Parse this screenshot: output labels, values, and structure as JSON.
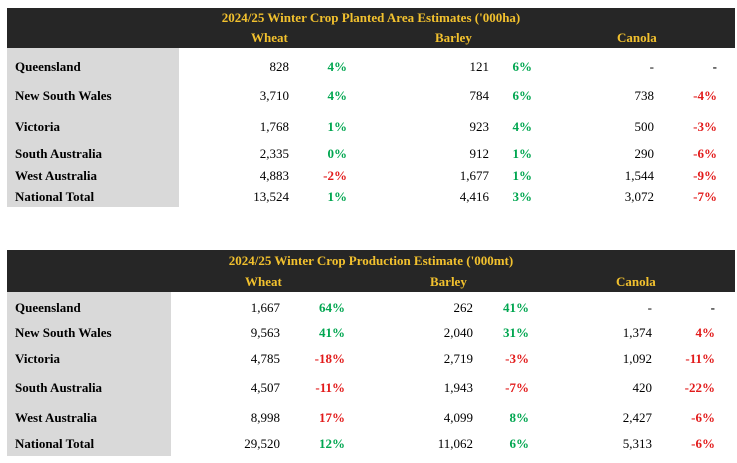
{
  "table1": {
    "title": "2024/25 Winter Crop Planted Area Estimates ('000ha)",
    "headers": [
      "Wheat",
      "Barley",
      "Canola"
    ],
    "rows": [
      {
        "region": "Queensland",
        "wheat": "828",
        "wheat_pct": "4%",
        "barley": "121",
        "barley_pct": "6%",
        "canola": "-",
        "canola_pct": "-"
      },
      {
        "region": "New South Wales",
        "wheat": "3,710",
        "wheat_pct": "4%",
        "barley": "784",
        "barley_pct": "6%",
        "canola": "738",
        "canola_pct": "-4%"
      },
      {
        "region": "Victoria",
        "wheat": "1,768",
        "wheat_pct": "1%",
        "barley": "923",
        "barley_pct": "4%",
        "canola": "500",
        "canola_pct": "-3%"
      },
      {
        "region": "South Australia",
        "wheat": "2,335",
        "wheat_pct": "0%",
        "barley": "912",
        "barley_pct": "1%",
        "canola": "290",
        "canola_pct": "-6%"
      },
      {
        "region": "West Australia",
        "wheat": "4,883",
        "wheat_pct": "-2%",
        "barley": "1,677",
        "barley_pct": "1%",
        "canola": "1,544",
        "canola_pct": "-9%"
      },
      {
        "region": "National Total",
        "wheat": "13,524",
        "wheat_pct": "1%",
        "barley": "4,416",
        "barley_pct": "3%",
        "canola": "3,072",
        "canola_pct": "-7%"
      }
    ]
  },
  "table2": {
    "title": "2024/25 Winter Crop Production Estimate ('000mt)",
    "headers": [
      "Wheat",
      "Barley",
      "Canola"
    ],
    "rows": [
      {
        "region": "Queensland",
        "wheat": "1,667",
        "wheat_pct": "64%",
        "barley": "262",
        "barley_pct": "41%",
        "canola": "-",
        "canola_pct": "-"
      },
      {
        "region": "New South Wales",
        "wheat": "9,563",
        "wheat_pct": "41%",
        "barley": "2,040",
        "barley_pct": "31%",
        "canola": "1,374",
        "canola_pct": "4%"
      },
      {
        "region": "Victoria",
        "wheat": "4,785",
        "wheat_pct": "-18%",
        "barley": "2,719",
        "barley_pct": "-3%",
        "canola": "1,092",
        "canola_pct": "-11%"
      },
      {
        "region": "South Australia",
        "wheat": "4,507",
        "wheat_pct": "-11%",
        "barley": "1,943",
        "barley_pct": "-7%",
        "canola": "420",
        "canola_pct": "-22%"
      },
      {
        "region": "West Australia",
        "wheat": "8,998",
        "wheat_pct": "17%",
        "barley": "4,099",
        "barley_pct": "8%",
        "canola": "2,427",
        "canola_pct": "-6%"
      },
      {
        "region": "National Total",
        "wheat": "29,520",
        "wheat_pct": "12%",
        "barley": "11,062",
        "barley_pct": "6%",
        "canola": "5,313",
        "canola_pct": "-6%"
      }
    ]
  },
  "colors": {
    "header_bg": "#262626",
    "header_text": "#f2c12e",
    "label_bg": "#d9d9d9",
    "positive": "#00a650",
    "negative": "#e21b1b"
  }
}
